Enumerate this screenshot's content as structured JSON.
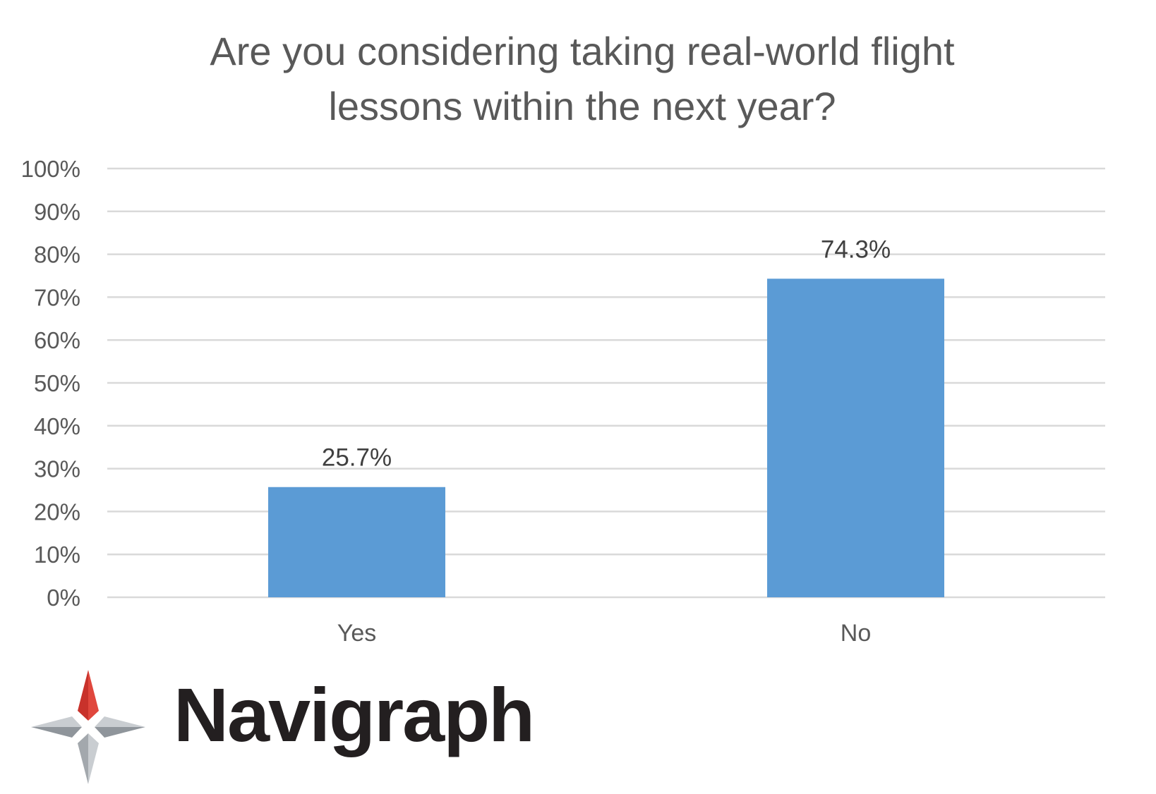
{
  "chart_data": {
    "type": "bar",
    "title": "Are you considering taking real-world flight lessons within the next year?",
    "title_lines": [
      "Are you considering taking real-world flight",
      "lessons within the next year?"
    ],
    "categories": [
      "Yes",
      "No"
    ],
    "values": [
      25.7,
      74.3
    ],
    "data_labels": [
      "25.7%",
      "74.3%"
    ],
    "xlabel": "",
    "ylabel": "",
    "ylim": [
      0,
      100
    ],
    "yticks": [
      0,
      10,
      20,
      30,
      40,
      50,
      60,
      70,
      80,
      90,
      100
    ],
    "ytick_labels": [
      "0%",
      "10%",
      "20%",
      "30%",
      "40%",
      "50%",
      "60%",
      "70%",
      "80%",
      "90%",
      "100%"
    ],
    "grid": true,
    "legend": "none",
    "bar_color": "#5b9bd5"
  },
  "branding": {
    "name": "Navigraph",
    "mark_icon": "compass-star-icon",
    "colors": {
      "red": "#c8322b",
      "red_light": "#e0473d",
      "gray": "#a3a8ad",
      "gray_light": "#c9cdd1"
    }
  }
}
